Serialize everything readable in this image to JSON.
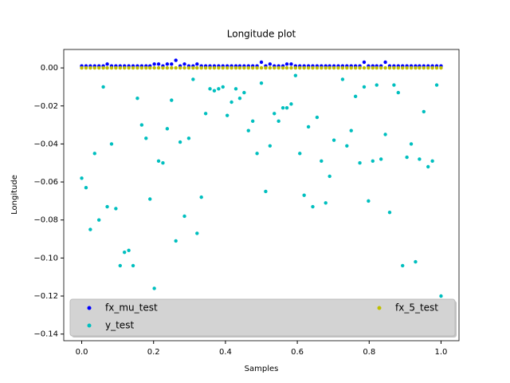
{
  "chart_data": {
    "type": "scatter",
    "title": "Longitude plot",
    "x_label": "Samples",
    "y_label": "Longitude",
    "x": [
      0,
      0.012,
      0.024,
      0.036,
      0.048,
      0.06,
      0.071,
      0.083,
      0.095,
      0.107,
      0.119,
      0.131,
      0.143,
      0.155,
      0.167,
      0.179,
      0.19,
      0.202,
      0.214,
      0.226,
      0.238,
      0.25,
      0.262,
      0.274,
      0.286,
      0.298,
      0.31,
      0.321,
      0.333,
      0.345,
      0.357,
      0.369,
      0.381,
      0.393,
      0.405,
      0.417,
      0.429,
      0.44,
      0.452,
      0.464,
      0.476,
      0.488,
      0.5,
      0.512,
      0.524,
      0.536,
      0.548,
      0.56,
      0.571,
      0.583,
      0.595,
      0.607,
      0.619,
      0.631,
      0.643,
      0.655,
      0.667,
      0.679,
      0.69,
      0.702,
      0.714,
      0.726,
      0.738,
      0.75,
      0.762,
      0.774,
      0.786,
      0.798,
      0.81,
      0.821,
      0.833,
      0.845,
      0.857,
      0.869,
      0.881,
      0.893,
      0.905,
      0.917,
      0.929,
      0.94,
      0.952,
      0.964,
      0.976,
      0.988,
      1.0
    ],
    "series": [
      {
        "name": "fx_mu_test",
        "color": "#0000ff",
        "values": [
          0.001,
          0.001,
          0.001,
          0.001,
          0.001,
          0.001,
          0.002,
          0.001,
          0.001,
          0.001,
          0.001,
          0.001,
          0.001,
          0.001,
          0.001,
          0.001,
          0.001,
          0.002,
          0.002,
          0.001,
          0.002,
          0.002,
          0.004,
          0.001,
          0.002,
          0.001,
          0.001,
          0.002,
          0.001,
          0.001,
          0.001,
          0.001,
          0.001,
          0.001,
          0.001,
          0.001,
          0.001,
          0.001,
          0.001,
          0.001,
          0.001,
          0.001,
          0.003,
          0.001,
          0.002,
          0.001,
          0.001,
          0.001,
          0.002,
          0.002,
          0.001,
          0.001,
          0.001,
          0.001,
          0.001,
          0.001,
          0.001,
          0.001,
          0.001,
          0.001,
          0.001,
          0.001,
          0.001,
          0.001,
          0.001,
          0.001,
          0.003,
          0.001,
          0.001,
          0.001,
          0.001,
          0.003,
          0.001,
          0.001,
          0.001,
          0.001,
          0.001,
          0.001,
          0.001,
          0.001,
          0.001,
          0.001,
          0.001,
          0.001,
          0.001
        ]
      },
      {
        "name": "y_test",
        "color": "#00bfbf",
        "values": [
          -0.058,
          -0.063,
          -0.085,
          -0.045,
          -0.08,
          -0.01,
          -0.073,
          -0.04,
          -0.074,
          -0.104,
          -0.097,
          -0.096,
          -0.104,
          -0.016,
          -0.03,
          -0.037,
          -0.069,
          -0.116,
          -0.049,
          -0.05,
          -0.032,
          -0.017,
          -0.091,
          -0.039,
          -0.078,
          -0.037,
          -0.006,
          -0.087,
          -0.068,
          -0.024,
          -0.011,
          -0.012,
          -0.011,
          -0.01,
          -0.025,
          -0.018,
          -0.011,
          -0.016,
          -0.013,
          -0.033,
          -0.028,
          -0.045,
          -0.008,
          -0.065,
          -0.041,
          -0.024,
          -0.028,
          -0.021,
          -0.021,
          -0.019,
          -0.004,
          -0.045,
          -0.067,
          -0.031,
          -0.073,
          -0.026,
          -0.049,
          -0.071,
          -0.057,
          -0.038,
          -0.136,
          -0.006,
          -0.041,
          -0.033,
          -0.015,
          -0.05,
          -0.01,
          -0.07,
          -0.049,
          -0.009,
          -0.048,
          -0.035,
          -0.076,
          -0.009,
          -0.013,
          -0.104,
          -0.047,
          -0.04,
          -0.102,
          -0.048,
          -0.023,
          -0.052,
          -0.049,
          -0.009,
          -0.12
        ]
      },
      {
        "name": "fx_5_test",
        "color": "#bfbf00",
        "values": [
          0,
          0,
          0,
          0,
          0,
          0,
          0,
          0,
          0,
          0,
          0,
          0,
          0,
          0,
          0,
          0,
          0,
          0,
          0,
          0,
          0,
          0,
          0,
          0,
          0,
          0,
          0,
          0,
          0,
          0,
          0,
          0,
          0,
          0,
          0,
          0,
          0,
          0,
          0,
          0,
          0,
          0,
          0,
          0,
          0,
          0,
          0,
          0,
          0,
          0,
          0,
          0,
          0,
          0,
          0,
          0,
          0,
          0,
          0,
          0,
          0,
          0,
          0,
          0,
          0,
          0,
          0,
          0,
          0,
          0,
          0,
          0,
          0,
          0,
          0,
          0,
          0,
          0,
          0,
          0,
          0,
          0,
          0,
          0,
          0
        ]
      }
    ],
    "xlim": [
      -0.05,
      1.05
    ],
    "ylim": [
      -0.1435,
      0.0097
    ],
    "xticks": [
      {
        "value": 0,
        "label": "0.0"
      },
      0.2,
      0.4,
      0.6,
      0.8,
      {
        "value": 1,
        "label": "1.0"
      }
    ],
    "yticks": [
      {
        "value": -0.14,
        "label": "−0.14"
      },
      {
        "value": -0.12,
        "label": "−0.12"
      },
      {
        "value": -0.1,
        "label": "−0.10"
      },
      {
        "value": -0.08,
        "label": "−0.08"
      },
      {
        "value": -0.06,
        "label": "−0.06"
      },
      {
        "value": -0.04,
        "label": "−0.04"
      },
      {
        "value": -0.02,
        "label": "−0.02"
      },
      {
        "value": 0,
        "label": "0.00"
      }
    ],
    "legend": "lower center"
  }
}
